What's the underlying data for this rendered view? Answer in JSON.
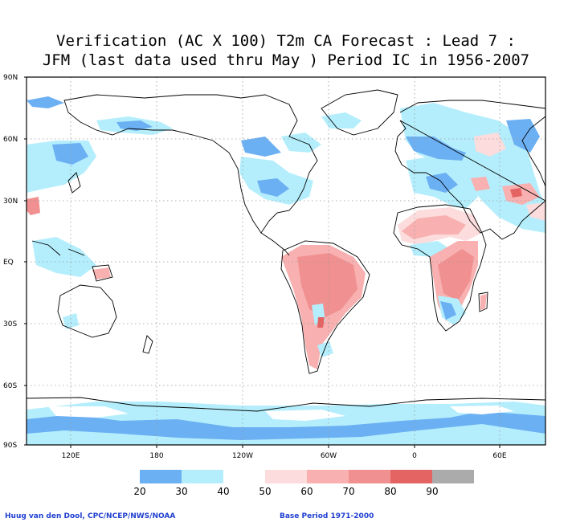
{
  "title": {
    "line1": "Verification (AC X 100) T2m CA Forecast : Lead 7 :",
    "line2": "JFM (last data used thru May ) Period IC in 1956-2007"
  },
  "lat_labels": [
    "90N",
    "60N",
    "30N",
    "EQ",
    "30S",
    "60S",
    "90S"
  ],
  "lon_labels": [
    "120E",
    "180",
    "120W",
    "60W",
    "0",
    "60E"
  ],
  "legend": {
    "bins": [
      {
        "from": 20,
        "to": 30,
        "color": "#6cb0f4"
      },
      {
        "from": 30,
        "to": 40,
        "color": "#b4eefc"
      },
      {
        "from": 40,
        "to": 50,
        "color": "#ffffff"
      },
      {
        "from": 50,
        "to": 60,
        "color": "#fcdcdc"
      },
      {
        "from": 60,
        "to": 70,
        "color": "#f8b0b0"
      },
      {
        "from": 70,
        "to": 80,
        "color": "#f09090"
      },
      {
        "from": 80,
        "to": 90,
        "color": "#e46464"
      },
      {
        "from": 90,
        "to": 100,
        "color": "#ababab"
      }
    ],
    "tick_labels": [
      "20",
      "30",
      "40",
      "50",
      "60",
      "70",
      "80",
      "90"
    ]
  },
  "credits": {
    "left": "Huug van den Dool, CPC/NCEP/NWS/NOAA",
    "right": "Base Period 1971-2000"
  },
  "colors": {
    "frame": "#000000",
    "grid": "#999999",
    "coast": "#000000"
  }
}
